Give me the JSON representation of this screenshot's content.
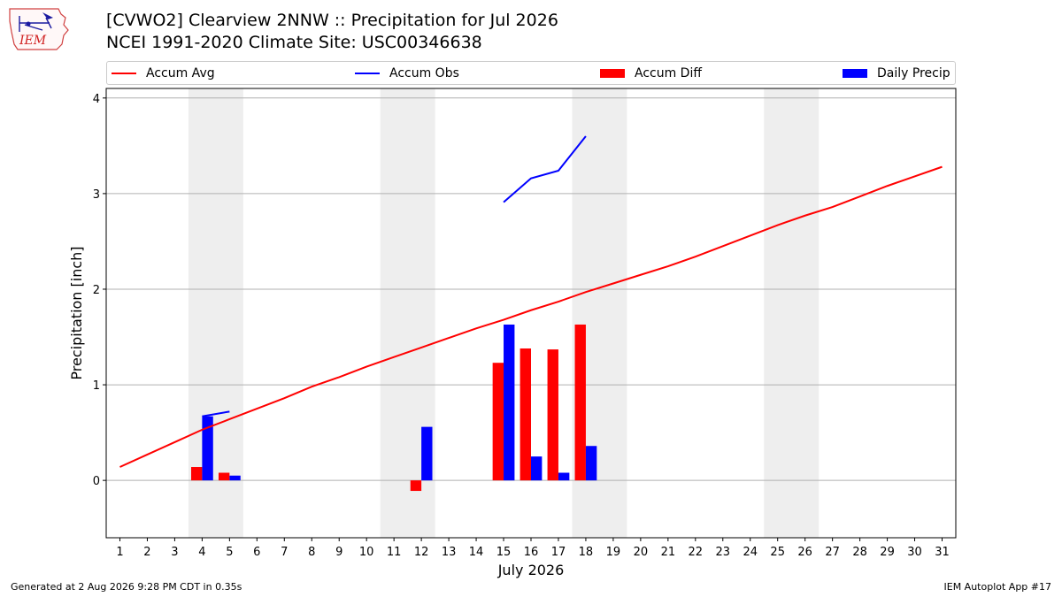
{
  "header": {
    "title_line1": "[CVWO2] Clearview 2NNW :: Precipitation for Jul 2026",
    "title_line2": "NCEI 1991-2020 Climate Site: USC00346638"
  },
  "logo": {
    "text": "IEM",
    "icon": "iem-iowa-logo"
  },
  "footer": {
    "generated": "Generated at 2 Aug 2026 9:28 PM CDT in 0.35s",
    "app": "IEM Autoplot App #17"
  },
  "colors": {
    "avg": "#ff0000",
    "obs": "#0000ff",
    "diff": "#ff0000",
    "precip": "#0000ff",
    "weekend": "#eeeeee",
    "grid": "#b0b0b0"
  },
  "chart_data": {
    "type": "bar",
    "title": "[CVWO2] Clearview 2NNW :: Precipitation for Jul 2026",
    "xlabel": "July 2026",
    "ylabel": "Precipitation [inch]",
    "xlim": [
      0.5,
      31.5
    ],
    "ylim": [
      -0.6,
      4.1
    ],
    "yticks": [
      0,
      1,
      2,
      3,
      4
    ],
    "x": [
      1,
      2,
      3,
      4,
      5,
      6,
      7,
      8,
      9,
      10,
      11,
      12,
      13,
      14,
      15,
      16,
      17,
      18,
      19,
      20,
      21,
      22,
      23,
      24,
      25,
      26,
      27,
      28,
      29,
      30,
      31
    ],
    "grid": "horizontal",
    "legend_position": "top",
    "weekend_days": [
      [
        4,
        5
      ],
      [
        11,
        12
      ],
      [
        18,
        19
      ],
      [
        25,
        26
      ]
    ],
    "series": [
      {
        "name": "Accum Avg",
        "kind": "line",
        "values": [
          0.14,
          0.27,
          0.4,
          0.53,
          0.64,
          0.75,
          0.86,
          0.98,
          1.08,
          1.19,
          1.29,
          1.39,
          1.49,
          1.59,
          1.68,
          1.78,
          1.87,
          1.97,
          2.06,
          2.15,
          2.24,
          2.34,
          2.45,
          2.56,
          2.67,
          2.77,
          2.86,
          2.97,
          3.08,
          3.18,
          3.28
        ]
      },
      {
        "name": "Accum Obs",
        "kind": "line",
        "segments": [
          {
            "x": [
              4,
              5
            ],
            "values": [
              0.67,
              0.72
            ]
          },
          {
            "x": [
              15,
              16,
              17,
              18
            ],
            "values": [
              2.91,
              3.16,
              3.24,
              3.6
            ]
          }
        ]
      },
      {
        "name": "Accum Diff",
        "kind": "bar",
        "points": [
          [
            4,
            0.14
          ],
          [
            5,
            0.08
          ],
          [
            12,
            -0.11
          ],
          [
            15,
            1.23
          ],
          [
            16,
            1.38
          ],
          [
            17,
            1.37
          ],
          [
            18,
            1.63
          ]
        ]
      },
      {
        "name": "Daily Precip",
        "kind": "bar",
        "points": [
          [
            4,
            0.67
          ],
          [
            5,
            0.05
          ],
          [
            12,
            0.56
          ],
          [
            15,
            1.63
          ],
          [
            16,
            0.25
          ],
          [
            17,
            0.08
          ],
          [
            18,
            0.36
          ]
        ]
      }
    ]
  }
}
